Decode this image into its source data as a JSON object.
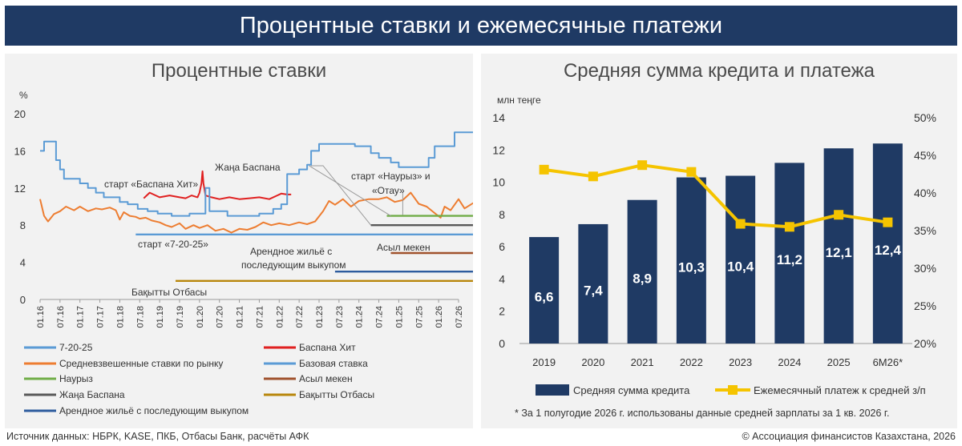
{
  "page": {
    "title": "Процентные ставки и ежемесячные платежи",
    "source": "Источник данных: НБРК, KASE, ПКБ, Отбасы Банк, расчёты АФК",
    "copyright": "© Ассоциация финансистов Казахстана, 2026"
  },
  "colors": {
    "banner": "#1f3a64",
    "panel_bg": "#f2f2f2",
    "bar": "#1f3a64",
    "payment_line": "#f5c400",
    "7-20-25": "#5b9bd5",
    "baspana_hit": "#e02020",
    "weighted": "#ed7d31",
    "base_rate": "#5b9bd5",
    "nauryz": "#70ad47",
    "asyl_meken": "#a0522d",
    "zhana_baspana": "#595959",
    "bakytty_otbasy": "#b8860b",
    "rent": "#2e5c9e"
  },
  "chart_data": [
    {
      "type": "line",
      "title": "Процентные ставки",
      "ylabel": "%",
      "ylim": [
        0,
        20
      ],
      "yticks": [
        "0",
        "4",
        "8",
        "12",
        "16",
        "20"
      ],
      "categories": [
        "01.16",
        "07.16",
        "01.17",
        "07.17",
        "01.18",
        "07.18",
        "01.19",
        "07.19",
        "01.20",
        "07.20",
        "01.21",
        "07.21",
        "01.22",
        "07.22",
        "01.23",
        "07.23",
        "01.24",
        "07.24",
        "01.25",
        "07.25",
        "01.26",
        "07.26"
      ],
      "series": [
        {
          "name": "7-20-25",
          "key": "7-20-25",
          "style": "flat",
          "values": [
            [
              4.8,
              7
            ],
            [
              21.9,
              7
            ]
          ]
        },
        {
          "name": "Баспана Хит",
          "key": "baspana_hit",
          "style": "line",
          "values": [
            [
              5.2,
              10.9
            ],
            [
              5.5,
              11.5
            ],
            [
              6.0,
              11.0
            ],
            [
              6.5,
              11.2
            ],
            [
              7.0,
              11.0
            ],
            [
              7.3,
              10.9
            ],
            [
              7.6,
              11.2
            ],
            [
              7.9,
              11.0
            ],
            [
              8.0,
              11.5
            ],
            [
              8.1,
              12.5
            ],
            [
              8.15,
              13.8
            ],
            [
              8.2,
              12.5
            ],
            [
              8.3,
              11.2
            ],
            [
              8.6,
              11.0
            ],
            [
              9.0,
              10.8
            ],
            [
              9.5,
              11.0
            ],
            [
              10.0,
              10.8
            ],
            [
              10.5,
              10.9
            ],
            [
              11.0,
              11.0
            ],
            [
              11.5,
              10.8
            ],
            [
              11.9,
              11.2
            ],
            [
              12.1,
              11.4
            ],
            [
              12.4,
              11.3
            ],
            [
              12.6,
              11.3
            ]
          ]
        },
        {
          "name": "Средневзвешенные ставки по рынку",
          "key": "weighted",
          "style": "line",
          "values": [
            [
              0.0,
              10.8
            ],
            [
              0.2,
              9.0
            ],
            [
              0.4,
              8.4
            ],
            [
              0.7,
              9.2
            ],
            [
              1.0,
              9.5
            ],
            [
              1.3,
              10.0
            ],
            [
              1.7,
              9.6
            ],
            [
              2.0,
              10.0
            ],
            [
              2.4,
              9.5
            ],
            [
              2.8,
              9.8
            ],
            [
              3.1,
              9.7
            ],
            [
              3.5,
              9.9
            ],
            [
              3.8,
              9.6
            ],
            [
              4.0,
              8.6
            ],
            [
              4.2,
              9.4
            ],
            [
              4.5,
              9.0
            ],
            [
              4.8,
              8.9
            ],
            [
              5.0,
              8.7
            ],
            [
              5.3,
              8.8
            ],
            [
              5.6,
              8.5
            ],
            [
              6.0,
              8.3
            ],
            [
              6.3,
              8.0
            ],
            [
              6.6,
              7.8
            ],
            [
              7.0,
              8.2
            ],
            [
              7.3,
              7.6
            ],
            [
              7.7,
              8.0
            ],
            [
              8.0,
              7.7
            ],
            [
              8.4,
              8.0
            ],
            [
              8.8,
              7.4
            ],
            [
              9.2,
              7.6
            ],
            [
              9.6,
              7.2
            ],
            [
              10.0,
              7.6
            ],
            [
              10.4,
              7.5
            ],
            [
              10.8,
              7.8
            ],
            [
              11.2,
              8.3
            ],
            [
              11.6,
              8.0
            ],
            [
              12.0,
              8.2
            ],
            [
              12.5,
              8.0
            ],
            [
              13.0,
              8.3
            ],
            [
              13.4,
              8.1
            ],
            [
              13.8,
              8.4
            ],
            [
              14.2,
              9.5
            ],
            [
              14.5,
              10.6
            ],
            [
              14.8,
              10.2
            ],
            [
              15.2,
              10.8
            ],
            [
              15.6,
              10.0
            ],
            [
              16.0,
              10.6
            ],
            [
              16.5,
              10.8
            ],
            [
              17.0,
              10.8
            ],
            [
              17.4,
              11.0
            ],
            [
              17.8,
              10.5
            ],
            [
              18.2,
              10.7
            ],
            [
              18.6,
              11.5
            ],
            [
              19.0,
              10.3
            ],
            [
              19.4,
              10.0
            ],
            [
              19.8,
              9.3
            ],
            [
              20.1,
              8.8
            ],
            [
              20.3,
              10.0
            ],
            [
              20.6,
              9.6
            ],
            [
              21.0,
              10.8
            ],
            [
              21.3,
              9.8
            ],
            [
              21.6,
              10.2
            ],
            [
              21.9,
              10.6
            ]
          ]
        },
        {
          "name": "Базовая ставка",
          "key": "base_rate",
          "style": "step",
          "values": [
            [
              0.0,
              16.0
            ],
            [
              0.2,
              17.0
            ],
            [
              0.6,
              17.0
            ],
            [
              0.8,
              15.0
            ],
            [
              1.0,
              14.0
            ],
            [
              1.2,
              13.0
            ],
            [
              2.0,
              12.5
            ],
            [
              2.4,
              12.0
            ],
            [
              2.8,
              11.5
            ],
            [
              3.2,
              11.0
            ],
            [
              4.0,
              10.5
            ],
            [
              4.4,
              10.25
            ],
            [
              4.9,
              9.75
            ],
            [
              5.4,
              9.5
            ],
            [
              5.9,
              9.25
            ],
            [
              6.6,
              9.0
            ],
            [
              7.5,
              9.25
            ],
            [
              8.2,
              9.25
            ],
            [
              8.3,
              12.0
            ],
            [
              8.5,
              9.5
            ],
            [
              9.4,
              9.0
            ],
            [
              11.0,
              9.25
            ],
            [
              11.7,
              9.75
            ],
            [
              12.1,
              10.25
            ],
            [
              12.4,
              13.5
            ],
            [
              13.0,
              14.0
            ],
            [
              13.4,
              14.5
            ],
            [
              13.6,
              16.0
            ],
            [
              14.0,
              16.75
            ],
            [
              15.8,
              16.5
            ],
            [
              16.6,
              15.75
            ],
            [
              17.0,
              15.25
            ],
            [
              17.6,
              14.75
            ],
            [
              18.0,
              14.25
            ],
            [
              19.5,
              15.25
            ],
            [
              19.8,
              16.5
            ],
            [
              20.8,
              18.0
            ],
            [
              21.7,
              18.0
            ],
            [
              21.9,
              17.0
            ]
          ]
        },
        {
          "name": "Наурыз",
          "key": "nauryz",
          "style": "flat",
          "values": [
            [
              17.4,
              9
            ],
            [
              21.9,
              9
            ]
          ]
        },
        {
          "name": "Асыл мекен",
          "key": "asyl_meken",
          "style": "flat",
          "values": [
            [
              17.6,
              5
            ],
            [
              21.9,
              5
            ]
          ]
        },
        {
          "name": "Жаңа Баспана",
          "key": "zhana_baspana",
          "style": "flat",
          "values": [
            [
              16.6,
              8
            ],
            [
              21.9,
              8
            ]
          ]
        },
        {
          "name": "Бақытты Отбасы",
          "key": "bakytty_otbasy",
          "style": "flat",
          "values": [
            [
              6.8,
              2
            ],
            [
              21.9,
              2
            ]
          ]
        },
        {
          "name": "Арендное жильё с последующим выкупом",
          "key": "rent",
          "style": "flat",
          "values": [
            [
              14.8,
              3
            ],
            [
              21.9,
              3
            ]
          ]
        }
      ],
      "annotations": [
        "старт «Баспана Хит»",
        "старт «7-20-25»",
        "Жаңа Баспана",
        "старт «Наурыз» и «Отау»",
        "Асыл мекен",
        "Арендное жильё с последующим выкупом",
        "Бақытты Отбасы"
      ]
    },
    {
      "type": "bar",
      "title": "Средняя сумма кредита и платежа",
      "ylabel": "млн теңге",
      "ylim": [
        0,
        14
      ],
      "yticks": [
        "0",
        "2",
        "4",
        "6",
        "8",
        "10",
        "12",
        "14"
      ],
      "y2lim": [
        20,
        50
      ],
      "y2ticks": [
        "20%",
        "25%",
        "30%",
        "35%",
        "40%",
        "45%",
        "50%"
      ],
      "categories": [
        "2019",
        "2020",
        "2021",
        "2022",
        "2023",
        "2024",
        "2025",
        "6M26*"
      ],
      "series": [
        {
          "name": "Средняя сумма кредита",
          "type": "bar",
          "values": [
            6.6,
            7.4,
            8.9,
            10.3,
            10.4,
            11.2,
            12.1,
            12.4
          ],
          "labels": [
            "6,6",
            "7,4",
            "8,9",
            "10,3",
            "10,4",
            "11,2",
            "12,1",
            "12,4"
          ]
        },
        {
          "name": "Ежемесячный платеж к средней з/п",
          "type": "line",
          "axis": "right",
          "values": [
            43.1,
            42.2,
            43.7,
            42.8,
            35.9,
            35.5,
            37.1,
            36.1
          ]
        }
      ],
      "footnote": "* За 1 полугодие 2026 г. использованы данные средней зарплаты за 1 кв. 2026 г."
    }
  ]
}
